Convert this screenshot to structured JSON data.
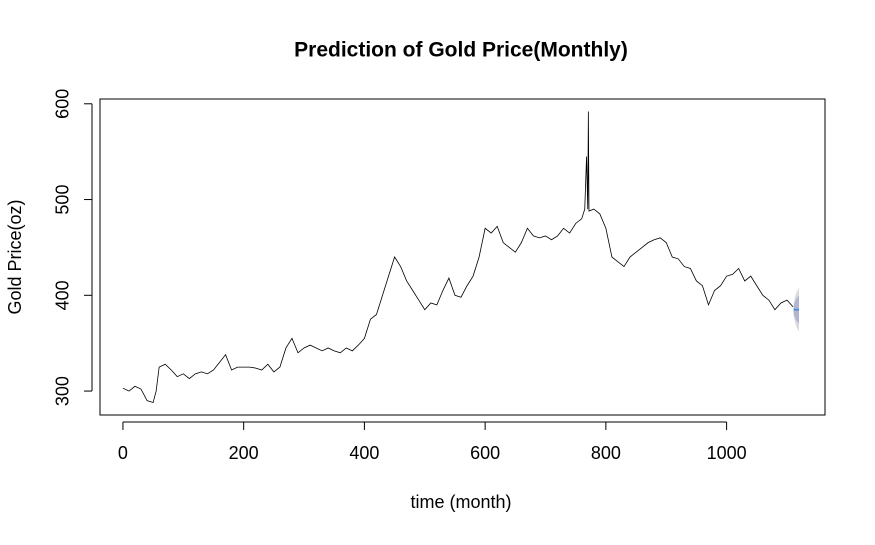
{
  "chart_data": {
    "type": "line",
    "title": "Prediction of Gold Price(Monthly)",
    "x_label": "time (month)",
    "y_label": "Gold Price(oz)",
    "xlim": [
      -38,
      1163
    ],
    "ylim": [
      275,
      605
    ],
    "xticks": [
      0,
      200,
      400,
      600,
      800,
      1000
    ],
    "yticks": [
      300,
      400,
      500,
      600
    ],
    "series": [
      {
        "color": "#000000",
        "x": [
          0,
          10,
          20,
          30,
          40,
          50,
          55,
          60,
          70,
          80,
          90,
          100,
          110,
          120,
          130,
          140,
          150,
          160,
          170,
          180,
          190,
          200,
          210,
          220,
          230,
          240,
          250,
          260,
          270,
          280,
          290,
          300,
          310,
          330,
          340,
          350,
          360,
          370,
          380,
          390,
          400,
          410,
          420,
          430,
          440,
          450,
          460,
          470,
          480,
          490,
          500,
          510,
          520,
          530,
          540,
          550,
          560,
          570,
          580,
          590,
          600,
          610,
          620,
          630,
          640,
          650,
          660,
          670,
          680,
          690,
          700,
          710,
          720,
          730,
          740,
          750,
          760,
          765,
          768,
          770,
          771,
          772,
          780,
          790,
          800,
          810,
          820,
          830,
          840,
          850,
          860,
          870,
          880,
          890,
          900,
          910,
          920,
          930,
          940,
          950,
          960,
          970,
          980,
          990,
          1000,
          1010,
          1020,
          1030,
          1040,
          1050,
          1060,
          1070,
          1080,
          1090,
          1100,
          1110
        ],
        "values": [
          303,
          300,
          305,
          302,
          290,
          288,
          300,
          325,
          328,
          322,
          315,
          318,
          313,
          318,
          320,
          318,
          322,
          330,
          338,
          322,
          325,
          325,
          325,
          324,
          322,
          328,
          320,
          325,
          345,
          355,
          340,
          345,
          348,
          342,
          345,
          342,
          340,
          345,
          342,
          348,
          355,
          375,
          380,
          400,
          420,
          440,
          430,
          415,
          405,
          395,
          385,
          392,
          390,
          405,
          418,
          400,
          398,
          410,
          420,
          440,
          470,
          465,
          472,
          455,
          450,
          445,
          455,
          470,
          462,
          460,
          462,
          458,
          462,
          470,
          465,
          475,
          480,
          490,
          545,
          490,
          592,
          488,
          490,
          485,
          470,
          440,
          435,
          430,
          440,
          445,
          450,
          455,
          458,
          460,
          455,
          440,
          438,
          430,
          428,
          415,
          410,
          390,
          405,
          410,
          420,
          422,
          428,
          415,
          420,
          410,
          400,
          395,
          385,
          392,
          395,
          388
        ]
      }
    ],
    "forecast": {
      "x": [
        1111,
        1115,
        1120
      ],
      "mean": [
        385,
        385,
        385
      ],
      "mean_color": "#4f8fd9",
      "lower80": [
        381,
        374,
        370
      ],
      "upper80": [
        389,
        396,
        400
      ],
      "color80": "#b1b5ce",
      "lower95": [
        378,
        368,
        362
      ],
      "upper95": [
        392,
        402,
        408
      ],
      "color95": "#dbdbdf"
    }
  }
}
